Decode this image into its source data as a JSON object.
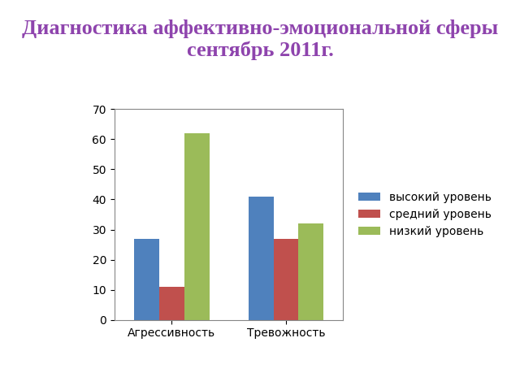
{
  "chart_data": {
    "type": "bar",
    "title": "Диагностика аффективно-эмоциональной сферы сентябрь 2011г.",
    "categories": [
      "Агрессивность",
      "Тревожность"
    ],
    "series": [
      {
        "name": "высокий уровень",
        "color": "#4f81bd",
        "values": [
          27,
          41
        ]
      },
      {
        "name": "средний уровень",
        "color": "#c0504d",
        "values": [
          11,
          27
        ]
      },
      {
        "name": "низкий уровень",
        "color": "#9bbb59",
        "values": [
          62,
          32
        ]
      }
    ],
    "ylim": [
      0,
      70
    ],
    "yticks": [
      0,
      10,
      20,
      30,
      40,
      50,
      60,
      70
    ],
    "grid": false,
    "legend": "right"
  }
}
